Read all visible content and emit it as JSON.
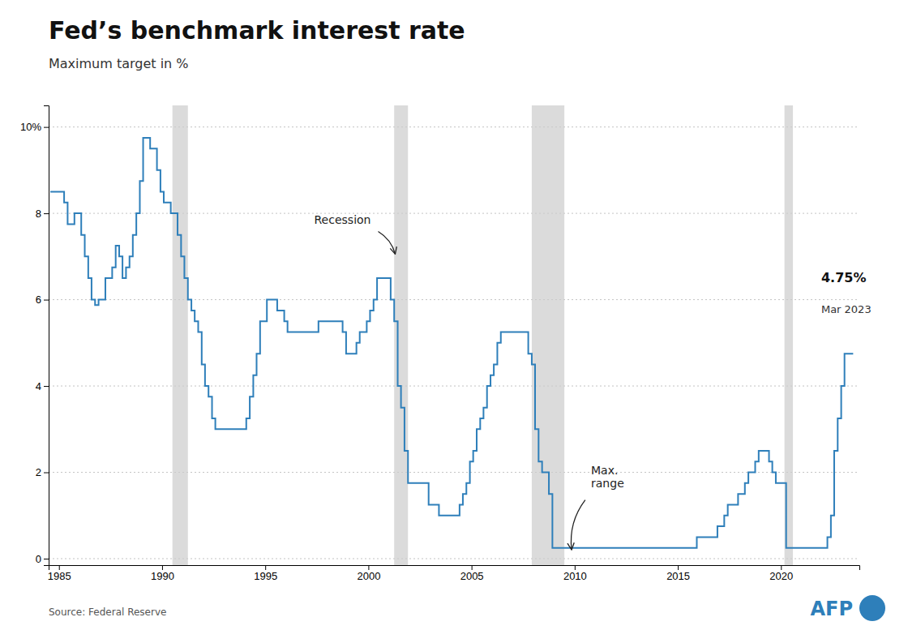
{
  "chart_data": {
    "type": "step",
    "title": "Fed’s benchmark interest rate",
    "subtitle": "Maximum target in %",
    "source": "Source: Federal Reserve",
    "credit": "AFP",
    "color": "#2e7fba",
    "grid": true,
    "xlim": [
      1984.5,
      2023.8
    ],
    "xticks": [
      1985,
      1990,
      1995,
      2000,
      2005,
      2010,
      2015,
      2020
    ],
    "ylim": [
      -0.15,
      10.5
    ],
    "yticks": [
      0,
      2,
      4,
      6,
      8,
      {
        "value": 10,
        "label": "10%"
      }
    ],
    "recession_periods": [
      [
        1990.5,
        1991.25
      ],
      [
        2001.25,
        2001.92
      ],
      [
        2007.92,
        2009.5
      ],
      [
        2020.17,
        2020.58
      ]
    ],
    "annotations": [
      {
        "text": "Recession",
        "x": 2001.3,
        "y": 7.0
      },
      {
        "text": "Max.\nrange",
        "x": 2009.85,
        "y": 0.15
      }
    ],
    "end_labels": [
      {
        "text": "4.75%",
        "x": 2021.95,
        "y": 6.4
      },
      {
        "text": "Mar 2023",
        "x": 2021.95,
        "y": 5.7
      }
    ],
    "x": [
      1984.58,
      1985.08,
      1985.25,
      1985.42,
      1985.58,
      1985.75,
      1985.92,
      1986.08,
      1986.25,
      1986.42,
      1986.58,
      1986.75,
      1986.92,
      1987.08,
      1987.25,
      1987.42,
      1987.58,
      1987.75,
      1987.92,
      1988.08,
      1988.25,
      1988.42,
      1988.58,
      1988.75,
      1988.92,
      1989.08,
      1989.25,
      1989.42,
      1989.58,
      1989.75,
      1989.92,
      1990.08,
      1990.25,
      1990.42,
      1990.58,
      1990.75,
      1990.92,
      1991.08,
      1991.25,
      1991.42,
      1991.58,
      1991.75,
      1991.92,
      1992.08,
      1992.25,
      1992.42,
      1992.58,
      1992.75,
      1992.92,
      1993.08,
      1993.25,
      1993.42,
      1993.58,
      1993.75,
      1993.92,
      1994.08,
      1994.25,
      1994.42,
      1994.58,
      1994.75,
      1994.92,
      1995.08,
      1995.25,
      1995.42,
      1995.58,
      1995.75,
      1995.92,
      1996.08,
      1996.25,
      1996.42,
      1996.58,
      1996.75,
      1996.92,
      1997.08,
      1997.25,
      1997.42,
      1997.58,
      1997.75,
      1997.92,
      1998.08,
      1998.25,
      1998.42,
      1998.58,
      1998.75,
      1998.92,
      1999.08,
      1999.25,
      1999.42,
      1999.58,
      1999.75,
      1999.92,
      2000.08,
      2000.25,
      2000.42,
      2000.58,
      2000.75,
      2000.92,
      2001.08,
      2001.25,
      2001.42,
      2001.58,
      2001.75,
      2001.92,
      2002.08,
      2002.25,
      2002.42,
      2002.58,
      2002.75,
      2002.92,
      2003.08,
      2003.25,
      2003.42,
      2003.58,
      2003.75,
      2003.92,
      2004.08,
      2004.25,
      2004.42,
      2004.58,
      2004.75,
      2004.92,
      2005.08,
      2005.25,
      2005.42,
      2005.58,
      2005.75,
      2005.92,
      2006.08,
      2006.25,
      2006.42,
      2006.58,
      2006.75,
      2006.92,
      2007.08,
      2007.25,
      2007.42,
      2007.58,
      2007.75,
      2007.92,
      2008.08,
      2008.25,
      2008.42,
      2008.58,
      2008.75,
      2008.92,
      2009.08,
      2009.25,
      2009.42,
      2009.58,
      2009.75,
      2009.92,
      2010.08,
      2010.25,
      2010.42,
      2010.58,
      2010.75,
      2010.92,
      2011.08,
      2011.25,
      2011.42,
      2011.58,
      2011.75,
      2011.92,
      2012.08,
      2012.25,
      2012.42,
      2012.58,
      2012.75,
      2012.92,
      2013.08,
      2013.25,
      2013.42,
      2013.58,
      2013.75,
      2013.92,
      2014.08,
      2014.25,
      2014.42,
      2014.58,
      2014.75,
      2014.92,
      2015.08,
      2015.25,
      2015.42,
      2015.58,
      2015.75,
      2015.92,
      2016.08,
      2016.25,
      2016.42,
      2016.58,
      2016.75,
      2016.92,
      2017.08,
      2017.25,
      2017.42,
      2017.58,
      2017.75,
      2017.92,
      2018.08,
      2018.25,
      2018.42,
      2018.58,
      2018.75,
      2018.92,
      2019.08,
      2019.25,
      2019.42,
      2019.58,
      2019.75,
      2019.92,
      2020.08,
      2020.25,
      2020.42,
      2020.58,
      2020.75,
      2020.92,
      2021.08,
      2021.25,
      2021.42,
      2021.58,
      2021.75,
      2021.92,
      2022.08,
      2022.25,
      2022.42,
      2022.58,
      2022.75,
      2022.92,
      2023.08,
      2023.5
    ],
    "values": [
      8.5,
      8.5,
      8.25,
      7.75,
      7.75,
      8.0,
      8.0,
      7.5,
      7.0,
      6.5,
      6.0,
      5.875,
      6.0,
      6.0,
      6.5,
      6.5,
      6.75,
      7.25,
      7.0,
      6.5,
      6.75,
      7.0,
      7.5,
      8.0,
      8.75,
      9.75,
      9.75,
      9.5,
      9.5,
      9.0,
      8.5,
      8.25,
      8.25,
      8.0,
      8.0,
      7.5,
      7.0,
      6.5,
      6.0,
      5.75,
      5.5,
      5.25,
      4.5,
      4.0,
      3.75,
      3.25,
      3.0,
      3.0,
      3.0,
      3.0,
      3.0,
      3.0,
      3.0,
      3.0,
      3.0,
      3.25,
      3.75,
      4.25,
      4.75,
      5.5,
      5.5,
      6.0,
      6.0,
      6.0,
      5.75,
      5.75,
      5.5,
      5.25,
      5.25,
      5.25,
      5.25,
      5.25,
      5.25,
      5.25,
      5.25,
      5.25,
      5.5,
      5.5,
      5.5,
      5.5,
      5.5,
      5.5,
      5.5,
      5.25,
      4.75,
      4.75,
      4.75,
      5.0,
      5.25,
      5.25,
      5.5,
      5.75,
      6.0,
      6.5,
      6.5,
      6.5,
      6.5,
      6.0,
      5.5,
      4.0,
      3.5,
      2.5,
      1.75,
      1.75,
      1.75,
      1.75,
      1.75,
      1.75,
      1.25,
      1.25,
      1.25,
      1.0,
      1.0,
      1.0,
      1.0,
      1.0,
      1.0,
      1.25,
      1.5,
      1.75,
      2.25,
      2.5,
      3.0,
      3.25,
      3.5,
      4.0,
      4.25,
      4.5,
      5.0,
      5.25,
      5.25,
      5.25,
      5.25,
      5.25,
      5.25,
      5.25,
      5.25,
      4.75,
      4.5,
      3.0,
      2.25,
      2.0,
      2.0,
      1.5,
      0.25,
      0.25,
      0.25,
      0.25,
      0.25,
      0.25,
      0.25,
      0.25,
      0.25,
      0.25,
      0.25,
      0.25,
      0.25,
      0.25,
      0.25,
      0.25,
      0.25,
      0.25,
      0.25,
      0.25,
      0.25,
      0.25,
      0.25,
      0.25,
      0.25,
      0.25,
      0.25,
      0.25,
      0.25,
      0.25,
      0.25,
      0.25,
      0.25,
      0.25,
      0.25,
      0.25,
      0.25,
      0.25,
      0.25,
      0.25,
      0.25,
      0.25,
      0.5,
      0.5,
      0.5,
      0.5,
      0.5,
      0.5,
      0.75,
      0.75,
      1.0,
      1.25,
      1.25,
      1.25,
      1.5,
      1.5,
      1.75,
      2.0,
      2.0,
      2.25,
      2.5,
      2.5,
      2.5,
      2.25,
      2.0,
      1.75,
      1.75,
      1.75,
      0.25,
      0.25,
      0.25,
      0.25,
      0.25,
      0.25,
      0.25,
      0.25,
      0.25,
      0.25,
      0.25,
      0.25,
      0.5,
      1.0,
      2.5,
      3.25,
      4.0,
      4.75,
      4.75
    ]
  }
}
